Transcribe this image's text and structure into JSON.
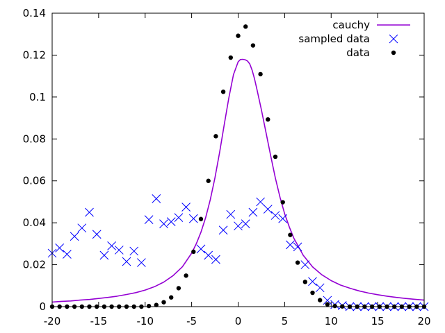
{
  "chart_data": {
    "type": "scatter",
    "title": "",
    "xlabel": "",
    "ylabel": "",
    "xlim": [
      -20,
      20
    ],
    "ylim": [
      0,
      0.14
    ],
    "x_ticks": [
      "-20",
      "-15",
      "-10",
      "-5",
      "0",
      "5",
      "10",
      "15",
      "20"
    ],
    "y_ticks": [
      "0",
      "0.02",
      "0.04",
      "0.06",
      "0.08",
      "0.1",
      "0.12",
      "0.14"
    ],
    "grid": false,
    "legend_position": "top-right",
    "series": [
      {
        "name": "cauchy",
        "kind": "line",
        "color": "#9400d3",
        "x": [
          -20,
          -19,
          -18,
          -17,
          -16,
          -15,
          -14,
          -13,
          -12,
          -11,
          -10,
          -9,
          -8,
          -7,
          -6,
          -5,
          -4.5,
          -4,
          -3.5,
          -3,
          -2.5,
          -2,
          -1.5,
          -1,
          -0.5,
          0,
          0.25,
          0.5,
          0.75,
          1,
          1.25,
          1.5,
          1.75,
          2,
          2.5,
          3,
          3.5,
          4,
          4.5,
          5,
          5.5,
          6,
          7,
          8,
          9,
          10,
          11,
          12,
          13,
          14,
          15,
          16,
          17,
          18,
          19,
          20
        ],
        "y": [
          0.0022,
          0.0025,
          0.0027,
          0.0031,
          0.0034,
          0.0039,
          0.0044,
          0.005,
          0.0058,
          0.0067,
          0.0079,
          0.0095,
          0.0117,
          0.0148,
          0.019,
          0.0255,
          0.03,
          0.0355,
          0.0424,
          0.051,
          0.0614,
          0.0735,
          0.0866,
          0.0996,
          0.1107,
          0.1168,
          0.1179,
          0.118,
          0.1178,
          0.1172,
          0.1158,
          0.1128,
          0.1089,
          0.104,
          0.094,
          0.083,
          0.072,
          0.0614,
          0.0522,
          0.0443,
          0.038,
          0.0325,
          0.0245,
          0.019,
          0.0152,
          0.0124,
          0.0103,
          0.0088,
          0.0075,
          0.0065,
          0.0057,
          0.005,
          0.0044,
          0.0039,
          0.0035,
          0.0031
        ]
      },
      {
        "name": "sampled data",
        "kind": "cross",
        "color": "#0000ff",
        "x": [
          -20,
          -19.2,
          -18.4,
          -17.6,
          -16.8,
          -16,
          -15.2,
          -14.4,
          -13.6,
          -12.8,
          -12,
          -11.2,
          -10.4,
          -9.6,
          -8.8,
          -8,
          -7.2,
          -6.4,
          -5.6,
          -4.8,
          -4,
          -3.2,
          -2.4,
          -1.6,
          -0.8,
          0,
          0.8,
          1.6,
          2.4,
          3.2,
          4,
          4.8,
          5.6,
          6.4,
          7.2,
          8,
          8.8,
          9.6,
          10.4,
          11.2,
          12,
          12.8,
          13.6,
          14.4,
          15.2,
          16,
          16.8,
          17.6,
          18.4,
          19.2,
          20
        ],
        "y": [
          0.0255,
          0.028,
          0.025,
          0.0335,
          0.0375,
          0.045,
          0.0345,
          0.0245,
          0.029,
          0.027,
          0.0215,
          0.0265,
          0.021,
          0.0415,
          0.0515,
          0.0395,
          0.0405,
          0.0425,
          0.0475,
          0.042,
          0.0275,
          0.0245,
          0.0225,
          0.0365,
          0.044,
          0.0385,
          0.0395,
          0.045,
          0.05,
          0.0465,
          0.0435,
          0.042,
          0.0295,
          0.0285,
          0.02,
          0.012,
          0.009,
          0.003,
          0.001,
          0.0005,
          0.0,
          0.0,
          0.0,
          0.0,
          0.0,
          0.0,
          0.0,
          0.0,
          0.0,
          0.0,
          0.0
        ]
      },
      {
        "name": "data",
        "kind": "dot",
        "color": "#000000",
        "x": [
          -20,
          -19.2,
          -18.4,
          -17.6,
          -16.8,
          -16,
          -15.2,
          -14.4,
          -13.6,
          -12.8,
          -12,
          -11.2,
          -10.4,
          -9.6,
          -8.8,
          -8,
          -7.2,
          -6.4,
          -5.6,
          -4.8,
          -4,
          -3.2,
          -2.4,
          -1.6,
          -0.8,
          0,
          0.8,
          1.6,
          2.4,
          3.2,
          4,
          4.8,
          5.6,
          6.4,
          7.2,
          8,
          8.8,
          9.6,
          10.4,
          11.2,
          12,
          12.8,
          13.6,
          14.4,
          15.2,
          16,
          16.8,
          17.6,
          18.4,
          19.2,
          20
        ],
        "y": [
          0,
          0,
          0,
          0,
          0,
          0,
          0,
          0,
          0,
          0,
          0,
          0,
          0,
          0.0003,
          0.0008,
          0.0021,
          0.0044,
          0.0088,
          0.0148,
          0.0262,
          0.0418,
          0.06,
          0.0813,
          0.1025,
          0.1188,
          0.1292,
          0.1336,
          0.1246,
          0.1109,
          0.0893,
          0.0715,
          0.0498,
          0.0342,
          0.021,
          0.0118,
          0.0066,
          0.0031,
          0.0011,
          0.0003,
          0.0001,
          0,
          0,
          0,
          0,
          0,
          0,
          0,
          0,
          0,
          0,
          0
        ]
      }
    ]
  }
}
